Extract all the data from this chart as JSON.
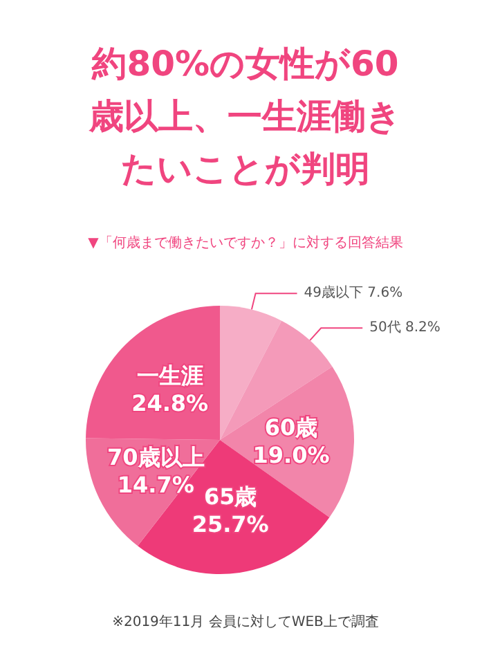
{
  "chart_data": {
    "type": "pie",
    "title": "約80%の女性が60歳以上、一生涯働きたいことが判明",
    "subtitle": "▼「何歳まで働きたいですか？」に対する回答結果",
    "categories": [
      "49歳以下",
      "50代",
      "60歳",
      "65歳",
      "70歳以上",
      "一生涯"
    ],
    "values": [
      7.6,
      8.2,
      19.0,
      25.7,
      14.7,
      24.8
    ],
    "colors": [
      "#f6adc6",
      "#f49ab9",
      "#f285aa",
      "#ee3a78",
      "#f06e9a",
      "#f0598d"
    ],
    "value_labels": [
      "7.6%",
      "8.2%",
      "19.0%",
      "25.7%",
      "14.7%",
      "24.8%"
    ],
    "legend": false,
    "annotations": [
      "※2019年11月 会員に対してWEB上で調査"
    ]
  }
}
